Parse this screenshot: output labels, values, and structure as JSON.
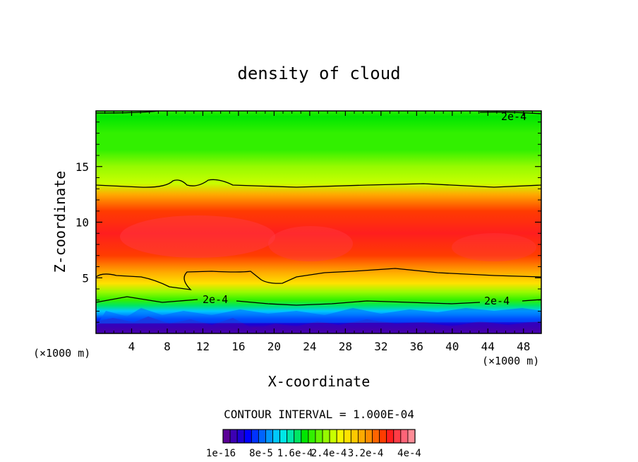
{
  "chart_data": {
    "type": "heatmap",
    "title": "density of cloud",
    "xlabel": "X-coordinate",
    "ylabel": "Z-coordinate",
    "x_unit_label": "(×1000 m)",
    "xlim": [
      0,
      50
    ],
    "ylim": [
      0,
      20
    ],
    "x_ticks": [
      "4",
      "8",
      "12",
      "16",
      "20",
      "24",
      "28",
      "32",
      "36",
      "40",
      "44",
      "48"
    ],
    "y_ticks": [
      "5",
      "10",
      "15"
    ],
    "contour_interval_label": "CONTOUR INTERVAL = 1.000E-04",
    "contour_lines": [
      {
        "level": "2e-4",
        "label_positions": [
          {
            "x": 45.5,
            "z": 19.4
          },
          {
            "x": 14,
            "z": 3.1
          },
          {
            "x": 45.5,
            "z": 2.9
          }
        ]
      }
    ],
    "colorbar": {
      "tick_labels": [
        "1e-16",
        "8e-5",
        "1.6e-4",
        "2.4e-4",
        "3.2e-4",
        "4e-4"
      ],
      "colors": [
        "#5a0096",
        "#3c00b4",
        "#1e00d2",
        "#0000ff",
        "#0032ff",
        "#0064ff",
        "#0096ff",
        "#00c8ff",
        "#00e6e6",
        "#00e6aa",
        "#00e664",
        "#00e600",
        "#32f000",
        "#64f500",
        "#96fa00",
        "#c8ff00",
        "#f5f500",
        "#ffe100",
        "#ffc800",
        "#ffaa00",
        "#ff8c00",
        "#ff6400",
        "#ff3c00",
        "#ff1e1e",
        "#ff3c46",
        "#ff6478",
        "#ff8c96"
      ]
    },
    "bands": [
      {
        "z": 0.3,
        "value": 1e-16
      },
      {
        "z": 0.8,
        "value": 3e-05
      },
      {
        "z": 1.3,
        "value": 6e-05
      },
      {
        "z": 1.7,
        "value": 9e-05
      },
      {
        "z": 2.0,
        "value": 0.00012
      },
      {
        "z": 2.5,
        "value": 0.00016
      },
      {
        "z": 3.0,
        "value": 0.0002
      },
      {
        "z": 3.7,
        "value": 0.00023
      },
      {
        "z": 4.5,
        "value": 0.00027
      },
      {
        "z": 5.5,
        "value": 0.00031
      },
      {
        "z": 7.0,
        "value": 0.00035
      },
      {
        "z": 9.0,
        "value": 0.00037
      },
      {
        "z": 11.0,
        "value": 0.00036
      },
      {
        "z": 12.5,
        "value": 0.0003
      },
      {
        "z": 13.5,
        "value": 0.00025
      },
      {
        "z": 15.0,
        "value": 0.00022
      },
      {
        "z": 16.5,
        "value": 0.0002
      },
      {
        "z": 18.0,
        "value": 0.00019
      },
      {
        "z": 19.5,
        "value": 0.00018
      },
      {
        "z": 20.0,
        "value": 0.0002
      }
    ]
  }
}
